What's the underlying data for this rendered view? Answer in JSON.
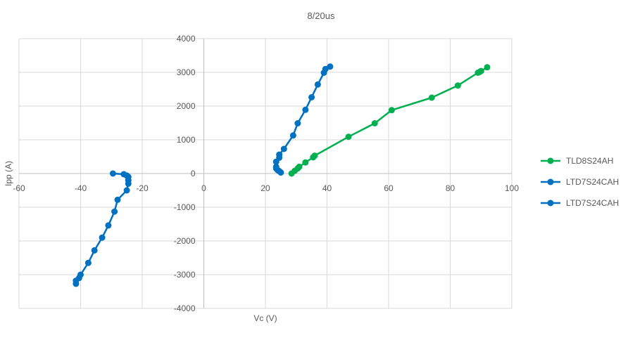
{
  "chart_data": {
    "type": "scatter",
    "title": "8/20us",
    "xlabel": "Vc (V)",
    "ylabel": "Ipp (A)",
    "xlim": [
      -60,
      100
    ],
    "ylim": [
      -4000,
      4000
    ],
    "x_ticks": [
      -60,
      -40,
      -20,
      0,
      20,
      40,
      60,
      80,
      100
    ],
    "y_ticks": [
      -4000,
      -3000,
      -2000,
      -1000,
      0,
      1000,
      2000,
      3000,
      4000
    ],
    "grid": true,
    "legend_position": "right",
    "series": [
      {
        "name": "TLD8S24AH",
        "color": "#00b050",
        "points": [
          [
            28.5,
            0
          ],
          [
            29.5,
            80
          ],
          [
            30.5,
            150
          ],
          [
            31,
            200
          ],
          [
            33,
            330
          ],
          [
            35.5,
            480
          ],
          [
            36,
            530
          ],
          [
            47,
            1090
          ],
          [
            55.5,
            1490
          ],
          [
            61,
            1880
          ],
          [
            74,
            2250
          ],
          [
            82.5,
            2610
          ],
          [
            89,
            2990
          ],
          [
            89.5,
            3010
          ],
          [
            90,
            3040
          ],
          [
            92,
            3150
          ]
        ]
      },
      {
        "name": "LTD7S24CAH",
        "color": "#0070c0",
        "points": [
          [
            25,
            30
          ],
          [
            24.5,
            70
          ],
          [
            24,
            100
          ],
          [
            23.5,
            150
          ],
          [
            23.5,
            200
          ],
          [
            23.5,
            350
          ],
          [
            24.5,
            470
          ],
          [
            24.5,
            560
          ],
          [
            26,
            730
          ],
          [
            29,
            1130
          ],
          [
            30.5,
            1490
          ],
          [
            33,
            1890
          ],
          [
            35,
            2260
          ],
          [
            37,
            2640
          ],
          [
            39,
            2990
          ],
          [
            39.5,
            3100
          ],
          [
            41,
            3170
          ]
        ]
      },
      {
        "name": "LTD7S24CAH",
        "color": "#0070c0",
        "points": [
          [
            -29.5,
            0
          ],
          [
            -26,
            -20
          ],
          [
            -25,
            -60
          ],
          [
            -24.5,
            -100
          ],
          [
            -24.5,
            -200
          ],
          [
            -24.5,
            -300
          ],
          [
            -25,
            -500
          ],
          [
            -28,
            -780
          ],
          [
            -29,
            -1130
          ],
          [
            -31,
            -1540
          ],
          [
            -33,
            -1900
          ],
          [
            -35.5,
            -2280
          ],
          [
            -37.5,
            -2650
          ],
          [
            -40,
            -3000
          ],
          [
            -40.5,
            -3100
          ],
          [
            -41.5,
            -3180
          ],
          [
            -41.5,
            -3270
          ]
        ]
      }
    ]
  }
}
